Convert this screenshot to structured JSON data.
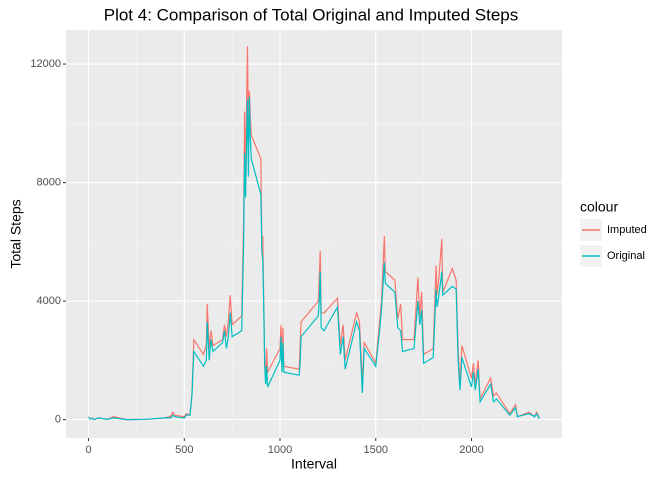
{
  "chart_data": {
    "type": "line",
    "title": "Plot 4: Comparison of Total Original and Imputed Steps",
    "x_label": "Interval",
    "y_label": "Total Steps",
    "legend_title": "colour",
    "x": [
      0,
      10,
      20,
      30,
      50,
      100,
      130,
      200,
      300,
      400,
      430,
      440,
      450,
      500,
      510,
      520,
      530,
      540,
      550,
      600,
      615,
      620,
      630,
      640,
      650,
      700,
      710,
      720,
      730,
      740,
      750,
      800,
      810,
      815,
      820,
      830,
      835,
      840,
      845,
      850,
      900,
      905,
      910,
      915,
      920,
      925,
      930,
      935,
      1000,
      1005,
      1010,
      1015,
      1020,
      1100,
      1105,
      1110,
      1200,
      1205,
      1210,
      1215,
      1230,
      1300,
      1315,
      1330,
      1340,
      1400,
      1415,
      1430,
      1440,
      1500,
      1520,
      1530,
      1545,
      1550,
      1600,
      1615,
      1630,
      1640,
      1700,
      1720,
      1730,
      1740,
      1750,
      1800,
      1815,
      1820,
      1830,
      1845,
      1850,
      1900,
      1920,
      1930,
      1940,
      1950,
      2000,
      2010,
      2020,
      2035,
      2045,
      2100,
      2115,
      2130,
      2200,
      2230,
      2240,
      2300,
      2330,
      2340,
      2355
    ],
    "series": [
      {
        "name": "Imputed",
        "color": "#F8766D",
        "values": [
          90,
          20,
          60,
          0,
          60,
          10,
          100,
          0,
          10,
          60,
          120,
          250,
          150,
          100,
          200,
          180,
          150,
          900,
          2700,
          2200,
          2500,
          3900,
          2400,
          3000,
          2500,
          2700,
          3200,
          2800,
          3300,
          4200,
          3200,
          3500,
          6800,
          10400,
          8300,
          12600,
          9800,
          11100,
          10200,
          9600,
          8800,
          6000,
          6200,
          4000,
          2000,
          1300,
          2400,
          1600,
          2400,
          3200,
          2000,
          3100,
          1800,
          1700,
          2500,
          3300,
          4000,
          4800,
          5700,
          3600,
          3600,
          4100,
          2500,
          3200,
          2000,
          3600,
          3300,
          1300,
          2600,
          1900,
          3300,
          4000,
          6200,
          5000,
          4700,
          3400,
          3900,
          2700,
          2700,
          4800,
          3500,
          4300,
          2200,
          2400,
          5200,
          4200,
          4800,
          6100,
          4300,
          5100,
          4700,
          2400,
          1200,
          2500,
          1400,
          1900,
          1200,
          2000,
          700,
          1400,
          800,
          900,
          200,
          500,
          100,
          250,
          100,
          250,
          50
        ]
      },
      {
        "name": "Original",
        "color": "#00BFC4",
        "values": [
          90,
          20,
          40,
          0,
          60,
          10,
          60,
          0,
          10,
          60,
          60,
          150,
          100,
          50,
          150,
          150,
          150,
          800,
          2300,
          1800,
          2000,
          3300,
          2000,
          2700,
          2300,
          2600,
          3000,
          2400,
          2800,
          3600,
          2800,
          3000,
          6000,
          9000,
          7500,
          10800,
          8200,
          10900,
          9500,
          8800,
          7600,
          5700,
          5400,
          3800,
          1800,
          1200,
          1800,
          1100,
          2000,
          2800,
          1600,
          2600,
          1600,
          1500,
          1900,
          2800,
          3500,
          4000,
          5000,
          3100,
          3000,
          3800,
          2200,
          2800,
          1700,
          3300,
          3000,
          900,
          2400,
          1800,
          3000,
          3700,
          5300,
          4600,
          4300,
          3100,
          3000,
          2300,
          2400,
          4000,
          3200,
          3700,
          1900,
          2100,
          4400,
          3800,
          4200,
          5000,
          4200,
          4500,
          4400,
          2000,
          1000,
          2100,
          1100,
          1600,
          1000,
          1700,
          600,
          1200,
          600,
          700,
          150,
          400,
          100,
          200,
          100,
          200,
          30
        ]
      }
    ],
    "xlim": [
      -117.75,
      2472.75
    ],
    "xticks": [
      0,
      500,
      1000,
      1500,
      2000
    ],
    "ylim": [
      -620,
      13150
    ],
    "yticks": [
      0,
      4000,
      8000,
      12000
    ],
    "grid": true,
    "legend": "right"
  }
}
